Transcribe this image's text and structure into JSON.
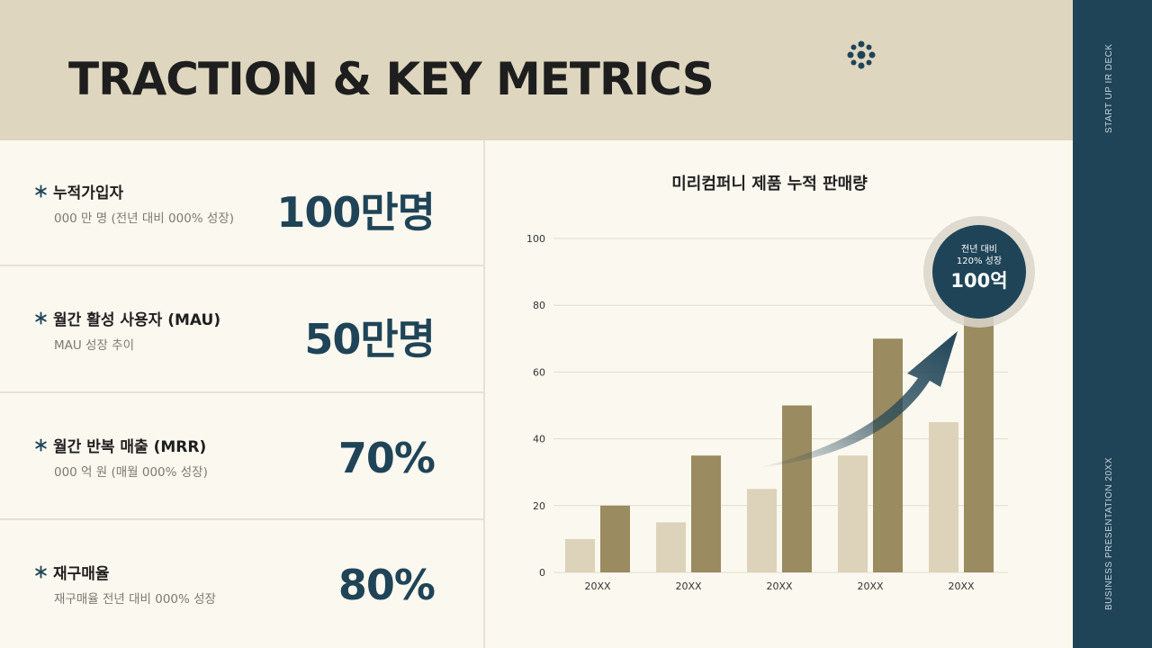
{
  "header": {
    "title": "TRACTION & KEY METRICS"
  },
  "sidebar": {
    "top_text": "START UP IR DECK",
    "bottom_text": "BUSINESS PRESENTATION 20XX"
  },
  "metrics": [
    {
      "label": "누적가입자",
      "sub": "000 만 명 (전년 대비 000% 성장)",
      "value": "100만명"
    },
    {
      "label": "월간 활성 사용자 (MAU)",
      "sub": "MAU 성장 추이",
      "value": "50만명"
    },
    {
      "label": "월간 반복 매출 (MRR)",
      "sub": "000 억 원 (매월 000% 성장)",
      "value": "70%"
    },
    {
      "label": "재구매율",
      "sub": "재구매율 전년 대비 000% 성장",
      "value": "80%"
    }
  ],
  "chart_data": {
    "type": "bar",
    "title": "미리컴퍼니 제품 누적 판매량",
    "categories": [
      "20XX",
      "20XX",
      "20XX",
      "20XX",
      "20XX"
    ],
    "series": [
      {
        "values": [
          10,
          15,
          25,
          35,
          45
        ]
      },
      {
        "values": [
          20,
          35,
          50,
          70,
          100
        ]
      }
    ],
    "ylim": [
      0,
      100
    ],
    "yticks": [
      0,
      20,
      40,
      60,
      80,
      100
    ],
    "grid": true,
    "colors": {
      "light": "#DDD3BA",
      "dark": "#9A8B60",
      "accent": "#1F4457"
    },
    "badge": {
      "line1": "전년 대비",
      "line2": "120% 성장",
      "value": "100억"
    }
  },
  "colors": {
    "navy": "#1F4457",
    "beige": "#DFD6BF",
    "background": "#FBF8EF"
  }
}
